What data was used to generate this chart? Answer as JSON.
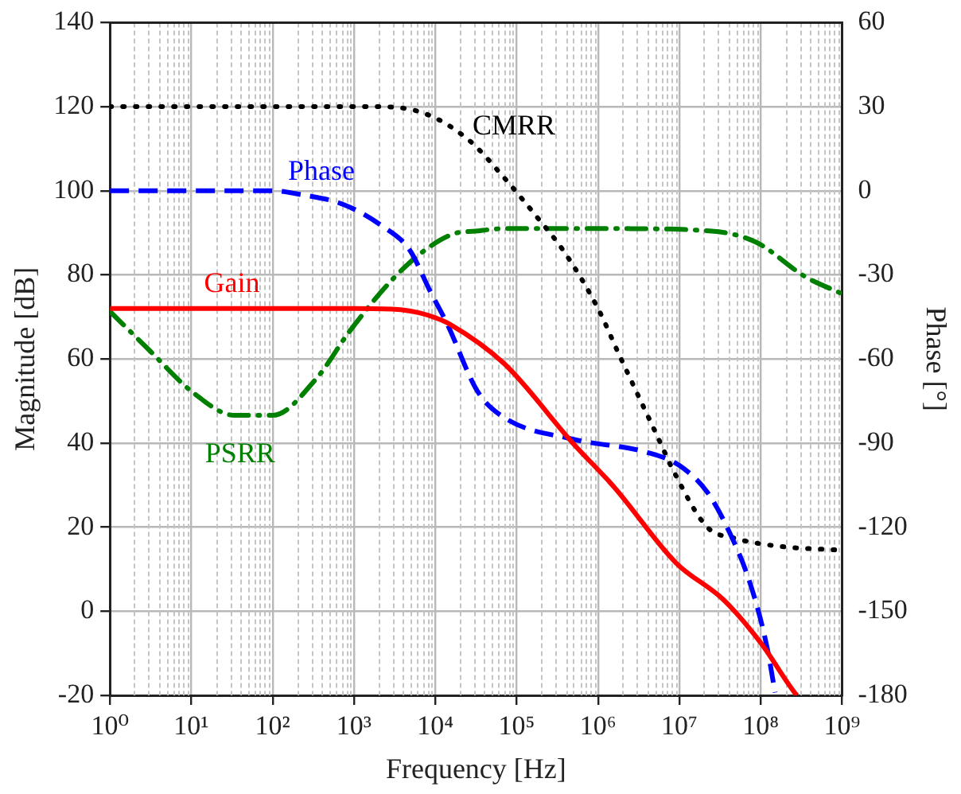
{
  "chart_data": {
    "type": "line",
    "xlabel": "Frequency [Hz]",
    "ylabel": "Magnitude [dB]",
    "y2label": "Phase [°]",
    "log": "x",
    "grid": true,
    "legend": false,
    "marker": "none",
    "xlim": [
      1,
      1000000000.0
    ],
    "xticks": [
      {
        "value": 1,
        "label": "10⁰"
      },
      {
        "value": 10,
        "label": "10¹"
      },
      {
        "value": 100,
        "label": "10²"
      },
      {
        "value": 1000,
        "label": "10³"
      },
      {
        "value": 10000.0,
        "label": "10⁴"
      },
      {
        "value": 100000.0,
        "label": "10⁵"
      },
      {
        "value": 1000000.0,
        "label": "10⁶"
      },
      {
        "value": 10000000.0,
        "label": "10⁷"
      },
      {
        "value": 100000000.0,
        "label": "10⁸"
      },
      {
        "value": 1000000000.0,
        "label": "10⁹"
      }
    ],
    "ylim": [
      -20,
      140
    ],
    "yticks": [
      -20,
      0,
      20,
      40,
      60,
      80,
      100,
      120,
      140
    ],
    "y2lim": [
      -180,
      60
    ],
    "y2ticks": [
      -180,
      -150,
      -120,
      -90,
      -60,
      -30,
      0,
      30,
      60
    ],
    "series": [
      {
        "name": "Gain",
        "color": "#ff0000",
        "line_style": "solid",
        "x": [
          1,
          1000,
          3200,
          6300,
          10000,
          15000,
          71000,
          490000,
          1600000.0,
          9100000.0,
          35000000.0,
          100000000.0,
          260000000.0,
          280000000.0
        ],
        "values": [
          72,
          72,
          71.8,
          71,
          69.8,
          68.3,
          58.8,
          40,
          29.4,
          11.5,
          2.7,
          -7.5,
          -19.3,
          -20
        ]
      },
      {
        "name": "Phase",
        "color": "#0000ff",
        "line_style": "dashed",
        "axis": "y2",
        "x": [
          1,
          100,
          190,
          760,
          2200,
          4800,
          8700,
          14000,
          33000,
          71000,
          490000,
          4000000.0,
          10000000.0,
          22000000.0,
          40000000.0,
          74000000.0,
          120000000.0,
          150000000.0
        ],
        "values": [
          0,
          0,
          -1,
          -5,
          -12.5,
          -21,
          -36,
          -47.5,
          -71.5,
          -81,
          -88.6,
          -93.3,
          -98,
          -107.5,
          -121,
          -140,
          -163,
          -179
        ]
      },
      {
        "name": "CMRR",
        "color": "#000000",
        "line_style": "dotted",
        "x": [
          1,
          2000,
          7600,
          26000,
          66000,
          170000,
          390000,
          1000000.0,
          1800000.0,
          5800000.0,
          8500000.0,
          22000000.0,
          47000000.0,
          160000000.0,
          1000000000.0
        ],
        "values": [
          120,
          120,
          118.3,
          112,
          103.7,
          94.2,
          85.3,
          72,
          61.2,
          40.2,
          33.3,
          20,
          17.4,
          15.5,
          14.5
        ]
      },
      {
        "name": "PSRR",
        "color": "#008000",
        "line_style": "dashdot",
        "x": [
          1,
          2.9,
          11,
          34,
          100,
          350,
          870,
          3000,
          7600,
          17000,
          31000,
          71000,
          1600000.0,
          25000000.0,
          87000000.0,
          350000000.0,
          1000000000.0
        ],
        "values": [
          71.3,
          62.5,
          51.7,
          46.6,
          46.6,
          55.5,
          66.4,
          79,
          86,
          89.8,
          90.4,
          91,
          91,
          90.4,
          87.8,
          79.6,
          75.5
        ]
      }
    ]
  }
}
